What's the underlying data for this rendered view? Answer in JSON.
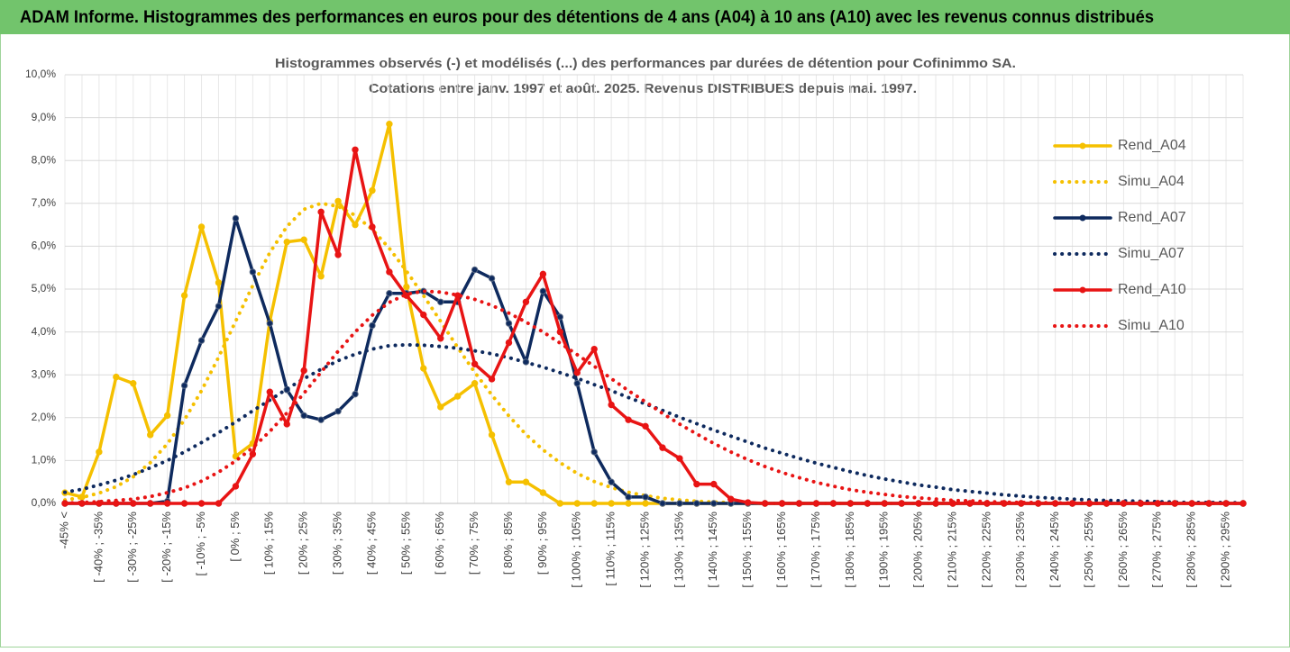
{
  "header": {
    "title": "ADAM Informe. Histogrammes des performances en euros pour des détentions de 4 ans (A04) à 10 ans (A10) avec les revenus connus distribués"
  },
  "chart_data": {
    "type": "line",
    "title": [
      "Histogrammes observés (-) et modélisés (...) des performances par durées de détention pour Cofinimmo SA.",
      "Cotations entre janv. 1997 et août. 2025. Revenus DISTRIBUES depuis mai. 1997."
    ],
    "categories": [
      "-45% <",
      null,
      "[ -40% ; -35%",
      null,
      "[ -30% ; -25%",
      null,
      "[ -20% ; -15%",
      null,
      "[ -10% ; -5%",
      null,
      "[ 0% ; 5%",
      null,
      "[ 10% ; 15%",
      null,
      "[ 20% ; 25%",
      null,
      "[ 30% ; 35%",
      null,
      "[ 40% ; 45%",
      null,
      "[ 50% ; 55%",
      null,
      "[ 60% ; 65%",
      null,
      "[ 70% ; 75%",
      null,
      "[ 80% ; 85%",
      null,
      "[ 90% ; 95%",
      null,
      "[ 100% ; 105%",
      null,
      "[ 110% ; 115%",
      null,
      "[ 120% ; 125%",
      null,
      "[ 130% ; 135%",
      null,
      "[ 140% ; 145%",
      null,
      "[ 150% ; 155%",
      null,
      "[ 160% ; 165%",
      null,
      "[ 170% ; 175%",
      null,
      "[ 180% ; 185%",
      null,
      "[ 190% ; 195%",
      null,
      "[ 200% ; 205%",
      null,
      "[ 210% ; 215%",
      null,
      "[ 220% ; 225%",
      null,
      "[ 230% ; 235%",
      null,
      "[ 240% ; 245%",
      null,
      "[ 250% ; 255%",
      null,
      "[ 260% ; 265%",
      null,
      "[ 270% ; 275%",
      null,
      "[ 280% ; 285%",
      null,
      "[ 290% ; 295%",
      null
    ],
    "series": [
      {
        "name": "Rend_A04",
        "color": "#f5c000",
        "line": "solid",
        "marker": true,
        "values": [
          0.25,
          0.15,
          1.2,
          2.95,
          2.8,
          1.6,
          2.05,
          4.85,
          6.45,
          5.15,
          1.1,
          1.4,
          4.25,
          6.1,
          6.15,
          5.3,
          7.05,
          6.5,
          7.3,
          8.85,
          5.05,
          3.15,
          2.25,
          2.5,
          2.8,
          1.6,
          0.5,
          0.5,
          0.25,
          0,
          0,
          0,
          0,
          0,
          0,
          0,
          0,
          0,
          0,
          0,
          0,
          0,
          0,
          0,
          0,
          0,
          0,
          0,
          0,
          0,
          0,
          0,
          0,
          0,
          0,
          0,
          0,
          0,
          0,
          0,
          0,
          0,
          0,
          0,
          0,
          0,
          0,
          0,
          0,
          0
        ]
      },
      {
        "name": "Simu_A04",
        "color": "#f5c000",
        "line": "dotted",
        "marker": false,
        "values": [
          0.08,
          0.14,
          0.24,
          0.39,
          0.62,
          0.95,
          1.39,
          1.95,
          2.63,
          3.41,
          4.25,
          5.08,
          5.85,
          6.46,
          6.86,
          7.0,
          6.93,
          6.72,
          6.39,
          5.95,
          5.42,
          4.85,
          4.25,
          3.64,
          3.06,
          2.53,
          2.04,
          1.61,
          1.25,
          0.95,
          0.7,
          0.51,
          0.37,
          0.26,
          0.18,
          0.12,
          0.08,
          0.05,
          0.03,
          0.02,
          0.01,
          0,
          0,
          0,
          0,
          0,
          0,
          0,
          0,
          0,
          0,
          0,
          0,
          0,
          0,
          0,
          0,
          0,
          0,
          0,
          0,
          0,
          0,
          0,
          0,
          0,
          0,
          0,
          0,
          0
        ]
      },
      {
        "name": "Rend_A07",
        "color": "#0e2a5e",
        "line": "solid",
        "marker": true,
        "values": [
          0,
          0,
          0,
          0,
          0,
          0,
          0.05,
          2.75,
          3.8,
          4.6,
          6.65,
          5.4,
          4.2,
          2.65,
          2.05,
          1.95,
          2.15,
          2.55,
          4.15,
          4.9,
          4.9,
          4.95,
          4.7,
          4.7,
          5.45,
          5.25,
          4.2,
          3.3,
          4.95,
          4.35,
          2.8,
          1.2,
          0.5,
          0.15,
          0.15,
          0,
          0,
          0,
          0,
          0,
          0,
          0,
          0,
          0,
          0,
          0,
          0,
          0,
          0,
          0,
          0,
          0,
          0,
          0,
          0,
          0,
          0,
          0,
          0,
          0,
          0,
          0,
          0,
          0,
          0,
          0,
          0,
          0,
          0,
          0
        ]
      },
      {
        "name": "Simu_A07",
        "color": "#0e2a5e",
        "line": "dotted",
        "marker": false,
        "values": [
          0.26,
          0.33,
          0.43,
          0.54,
          0.67,
          0.83,
          1.0,
          1.2,
          1.42,
          1.65,
          1.9,
          2.16,
          2.41,
          2.67,
          2.91,
          3.13,
          3.33,
          3.48,
          3.6,
          3.68,
          3.7,
          3.69,
          3.66,
          3.62,
          3.56,
          3.49,
          3.4,
          3.29,
          3.18,
          3.05,
          2.92,
          2.77,
          2.63,
          2.47,
          2.32,
          2.17,
          2.01,
          1.86,
          1.71,
          1.57,
          1.43,
          1.29,
          1.17,
          1.05,
          0.94,
          0.84,
          0.74,
          0.65,
          0.57,
          0.5,
          0.43,
          0.38,
          0.32,
          0.28,
          0.24,
          0.2,
          0.17,
          0.14,
          0.12,
          0.1,
          0.08,
          0.07,
          0.06,
          0.05,
          0.04,
          0.03,
          0.02,
          0.02,
          0.02,
          0.01
        ]
      },
      {
        "name": "Rend_A10",
        "color": "#e81414",
        "line": "solid",
        "marker": true,
        "values": [
          0,
          0,
          0,
          0,
          0,
          0,
          0,
          0,
          0,
          0,
          0.4,
          1.15,
          2.6,
          1.85,
          3.1,
          6.8,
          5.8,
          8.25,
          6.45,
          5.4,
          4.85,
          4.4,
          3.85,
          4.85,
          3.25,
          2.9,
          3.75,
          4.7,
          5.35,
          4.0,
          3.05,
          3.6,
          2.3,
          1.95,
          1.8,
          1.3,
          1.05,
          0.45,
          0.45,
          0.1,
          0.02,
          0,
          0,
          0,
          0,
          0,
          0,
          0,
          0,
          0,
          0,
          0,
          0,
          0,
          0,
          0,
          0,
          0,
          0,
          0,
          0,
          0,
          0,
          0,
          0,
          0,
          0,
          0,
          0,
          0
        ]
      },
      {
        "name": "Simu_A10",
        "color": "#e81414",
        "line": "dotted",
        "marker": false,
        "values": [
          0.01,
          0.02,
          0.04,
          0.07,
          0.1,
          0.16,
          0.25,
          0.36,
          0.52,
          0.73,
          0.99,
          1.3,
          1.68,
          2.11,
          2.57,
          3.06,
          3.55,
          4.0,
          4.39,
          4.69,
          4.88,
          4.95,
          4.93,
          4.86,
          4.76,
          4.62,
          4.44,
          4.23,
          4.0,
          3.74,
          3.47,
          3.2,
          2.91,
          2.63,
          2.37,
          2.1,
          1.85,
          1.62,
          1.4,
          1.2,
          1.02,
          0.86,
          0.72,
          0.6,
          0.49,
          0.4,
          0.32,
          0.26,
          0.21,
          0.16,
          0.13,
          0.1,
          0.07,
          0.06,
          0.04,
          0.03,
          0.02,
          0.02,
          0.01,
          0.01,
          0,
          0,
          0,
          0,
          0,
          0,
          0,
          0,
          0,
          0
        ]
      }
    ],
    "ylim": [
      0,
      10
    ],
    "yticks": [
      {
        "value": 0,
        "label": "0,0%"
      },
      {
        "value": 1,
        "label": "1,0%"
      },
      {
        "value": 2,
        "label": "2,0%"
      },
      {
        "value": 3,
        "label": "3,0%"
      },
      {
        "value": 4,
        "label": "4,0%"
      },
      {
        "value": 5,
        "label": "5,0%"
      },
      {
        "value": 6,
        "label": "6,0%"
      },
      {
        "value": 7,
        "label": "7,0%"
      },
      {
        "value": 8,
        "label": "8,0%"
      },
      {
        "value": 9,
        "label": "9,0%"
      },
      {
        "value": 10,
        "label": "10,0%"
      }
    ],
    "grid": true,
    "legend": "right"
  }
}
